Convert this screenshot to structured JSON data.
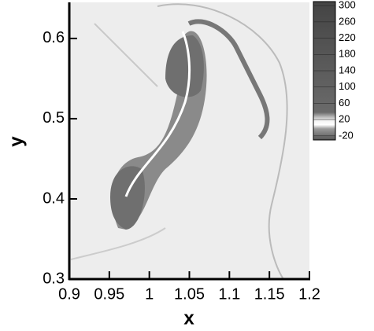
{
  "chart_data": {
    "type": "field",
    "x_label": "x",
    "y_label": "y",
    "xlim": [
      0.9,
      1.2
    ],
    "ylim": [
      0.3,
      0.645
    ],
    "xticks": [
      0.9,
      0.95,
      1,
      1.05,
      1.1,
      1.15,
      1.2
    ],
    "yticks": [
      0.3,
      0.4,
      0.5,
      0.6
    ],
    "colorbar": {
      "lim": [
        -30,
        310
      ],
      "ticks": [
        300,
        260,
        220,
        180,
        140,
        100,
        60,
        20,
        -20
      ]
    }
  }
}
